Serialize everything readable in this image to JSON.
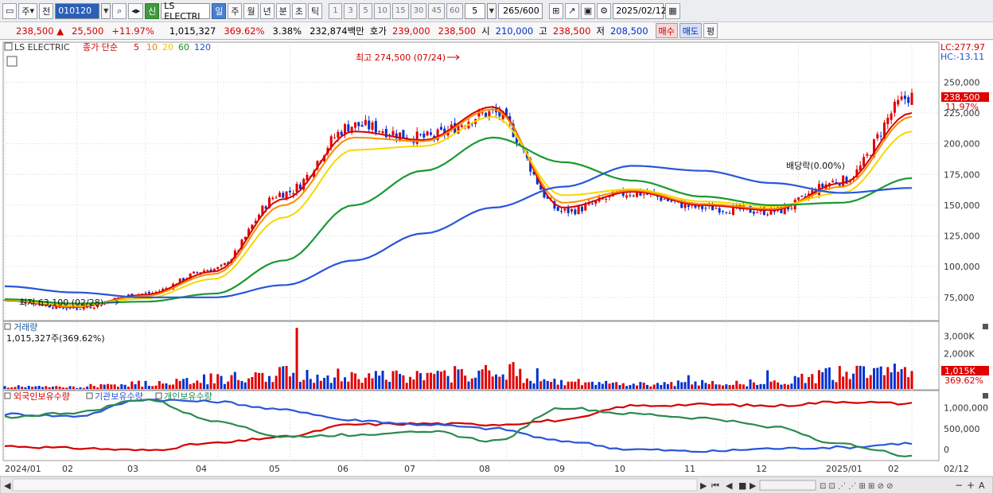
{
  "toolbar": {
    "market_label": "주",
    "prev_label": "전",
    "code": "010120",
    "badge": "신",
    "name": "LS ELECTRI",
    "periods": [
      "일",
      "주",
      "월",
      "년",
      "분",
      "초",
      "틱"
    ],
    "selected_period": "일",
    "nums": [
      "1",
      "3",
      "5",
      "10",
      "15",
      "30",
      "45",
      "60"
    ],
    "count_select": "5",
    "range_value": "265",
    "range_total": "/600",
    "date": "2025/02/12"
  },
  "quote": {
    "price": "238,500",
    "change": "25,500",
    "change_pct": "+11.97%",
    "volume": "1,015,327",
    "vol_ratio": "369.62%",
    "turnover": "3.38%",
    "amount": "232,874백만",
    "hoga_label": "호가",
    "ask": "239,000",
    "bid": "238,500",
    "open_label": "시",
    "open": "210,000",
    "high_label": "고",
    "high": "238,500",
    "low_label": "저",
    "low": "208,500",
    "buy_label": "매수",
    "sell_label": "매도",
    "eval_label": "평"
  },
  "price_pane": {
    "legend_name": "LS ELECTRIC",
    "legend_close": "종가 단순",
    "ma_labels": [
      "5",
      "10",
      "20",
      "60",
      "120"
    ],
    "lc": "LC:277.97",
    "hc": "HC:-13.11",
    "max_annotation": "최고 274,500 (07/24)",
    "min_annotation": "최저 63,100 (02/28)",
    "dividend_annotation": "배당락(0.00%)",
    "last_price_tag": "238,500",
    "last_pct_tag": "11.97%",
    "y_ticks": [
      "250,000",
      "225,000",
      "200,000",
      "175,000",
      "150,000",
      "125,000",
      "100,000",
      "75,000"
    ]
  },
  "volume_pane": {
    "title": "거래량",
    "info": "1,015,327주(369.62%)",
    "y_ticks": [
      "3,000K",
      "2,000K"
    ],
    "tag_value": "1,015K",
    "tag_pct": "369.62%"
  },
  "holdings_pane": {
    "legend": [
      "외국인보유수량",
      "기관보유수량",
      "개인보유수량"
    ],
    "y_ticks": [
      "1,000,000",
      "500,000",
      "0"
    ]
  },
  "x_labels": [
    "2024/01",
    "02",
    "03",
    "04",
    "05",
    "06",
    "07",
    "08",
    "09",
    "10",
    "11",
    "12",
    "2025/01",
    "02",
    "02/12"
  ],
  "chart_data": {
    "type": "line",
    "x": [
      "2024/01",
      "02",
      "03",
      "04",
      "05",
      "06",
      "07",
      "08",
      "09",
      "10",
      "11",
      "12",
      "2025/01",
      "02"
    ],
    "series": [
      {
        "name": "종가",
        "values": [
          73000,
          66000,
          78000,
          98000,
          160000,
          215000,
          205000,
          225000,
          145000,
          160000,
          148000,
          145000,
          170000,
          238500
        ]
      },
      {
        "name": "5",
        "values": [
          72500,
          67000,
          77000,
          96000,
          155000,
          210000,
          203000,
          230000,
          148000,
          161000,
          150000,
          146000,
          168000,
          225000
        ]
      },
      {
        "name": "10",
        "values": [
          72800,
          67500,
          76000,
          94000,
          150000,
          205000,
          202000,
          228000,
          152000,
          162000,
          151000,
          147000,
          165000,
          222000
        ]
      },
      {
        "name": "20",
        "values": [
          73000,
          68500,
          74000,
          90000,
          140000,
          195000,
          198000,
          222000,
          158000,
          163000,
          153000,
          149000,
          160000,
          210000
        ]
      },
      {
        "name": "60",
        "values": [
          73500,
          70000,
          71500,
          78000,
          105000,
          150000,
          178000,
          205000,
          185000,
          170000,
          157000,
          150000,
          152000,
          172000
        ]
      },
      {
        "name": "120",
        "values": [
          84000,
          79000,
          75000,
          75000,
          85000,
          105000,
          127000,
          148000,
          165000,
          182000,
          178000,
          168000,
          160000,
          164000
        ]
      }
    ],
    "ylim": [
      60000,
      280000
    ],
    "max": {
      "value": 274500,
      "date": "07/24"
    },
    "min": {
      "value": 63100,
      "date": "02/28"
    },
    "volume_k": [
      150,
      120,
      320,
      600,
      900,
      800,
      700,
      1100,
      400,
      300,
      350,
      380,
      900,
      1015
    ],
    "volume_ylim_k": [
      0,
      3600
    ],
    "holdings": {
      "외국인보유수량": [
        80000,
        30000,
        -20000,
        150000,
        300000,
        600000,
        620000,
        600000,
        700000,
        1050000,
        1080000,
        1050000,
        1150000,
        1100000
      ],
      "기관보유수량": [
        850000,
        800000,
        1200000,
        1150000,
        950000,
        700000,
        600000,
        500000,
        200000,
        0,
        -50000,
        20000,
        50000,
        150000
      ],
      "개인보유수량": [
        780000,
        880000,
        1200000,
        700000,
        300000,
        350000,
        450000,
        200000,
        1000000,
        850000,
        750000,
        550000,
        120000,
        -150000
      ]
    },
    "holdings_ylim": [
      -250000,
      1300000
    ]
  }
}
